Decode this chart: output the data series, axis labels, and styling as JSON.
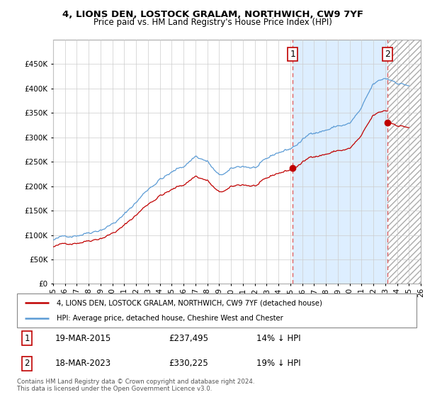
{
  "title": "4, LIONS DEN, LOSTOCK GRALAM, NORTHWICH, CW9 7YF",
  "subtitle": "Price paid vs. HM Land Registry's House Price Index (HPI)",
  "legend_line1": "4, LIONS DEN, LOSTOCK GRALAM, NORTHWICH, CW9 7YF (detached house)",
  "legend_line2": "HPI: Average price, detached house, Cheshire West and Chester",
  "annotation1_date": "19-MAR-2015",
  "annotation1_price": "£237,495",
  "annotation1_hpi": "14% ↓ HPI",
  "annotation2_date": "18-MAR-2023",
  "annotation2_price": "£330,225",
  "annotation2_hpi": "19% ↓ HPI",
  "footer": "Contains HM Land Registry data © Crown copyright and database right 2024.\nThis data is licensed under the Open Government Licence v3.0.",
  "hpi_color": "#5b9bd5",
  "price_color": "#c00000",
  "vline_color": "#e06060",
  "shading_color": "#ddeeff",
  "ylim": [
    0,
    500000
  ],
  "yticks": [
    0,
    50000,
    100000,
    150000,
    200000,
    250000,
    300000,
    350000,
    400000,
    450000
  ],
  "sale1_x": 2015.21,
  "sale1_y": 237495,
  "sale2_x": 2023.21,
  "sale2_y": 330225,
  "vline1_x": 2015.21,
  "vline2_x": 2023.21,
  "x_min": 1995,
  "x_max": 2026
}
